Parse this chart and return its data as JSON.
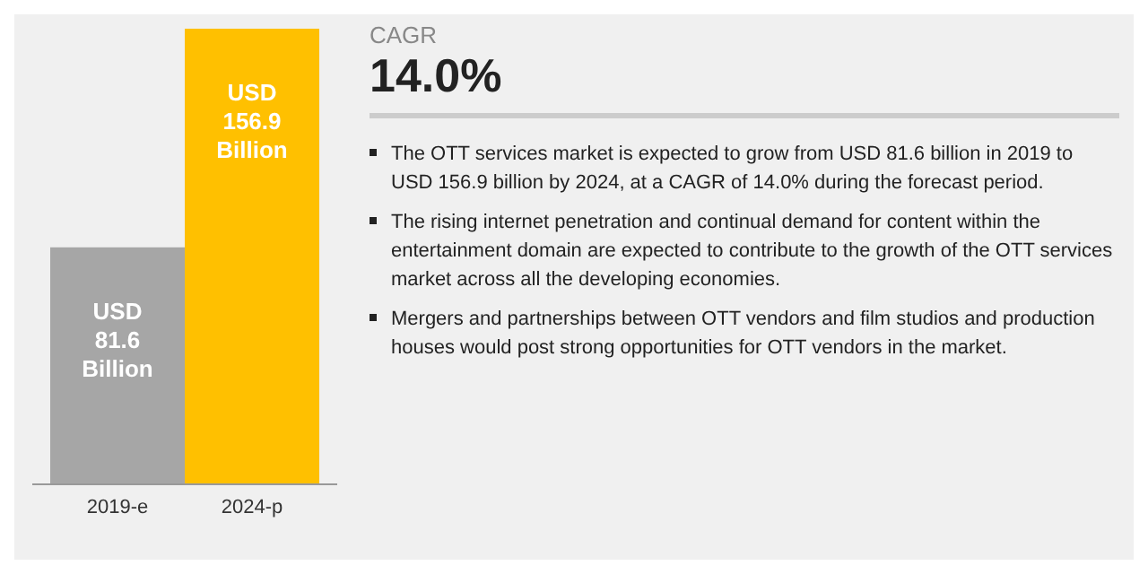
{
  "chart_data": {
    "type": "bar",
    "categories": [
      "2019-e",
      "2024-p"
    ],
    "values": [
      81.6,
      156.9
    ],
    "colors": [
      "#a6a6a6",
      "#ffc000"
    ],
    "value_labels": [
      "USD 81.6 Billion",
      "USD 156.9 Billion"
    ],
    "annotations": [
      "CAGR",
      "14.0%",
      "The OTT services market is expected to grow from USD 81.6 billion in 2019 to USD 156.9 billion by 2024, at a CAGR of 14.0% during the forecast period.",
      "The rising internet penetration and continual demand for content within the entertainment domain are expected to contribute to the growth of the OTT services market across all the developing economies.",
      "Mergers and partnerships between OTT vendors and film studios and production houses would post strong opportunities for OTT vendors in the market."
    ]
  }
}
